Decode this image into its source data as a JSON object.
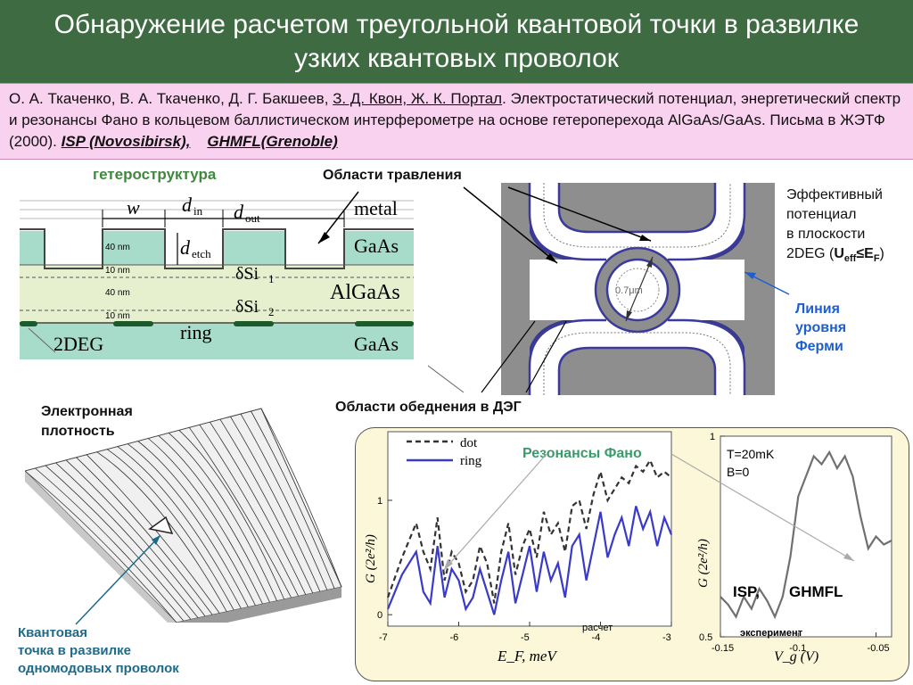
{
  "title": "Обнаружение расчетом треугольной квантовой точки в развилке узких квантовых проволок",
  "reference": {
    "authors_plain": "О. А. Ткаченко, В. А. Ткаченко, Д. Г. Бакшеев, ",
    "authors_underlined": "З. Д. Квон, Ж. К. Портал",
    "text": ". Электростатический потенциал, энергетический спектр и резонансы Фано в кольцевом баллистическом интерферометре на основе гетероперехода AlGaAs/GaAs. Письма в ЖЭТФ (2000). ",
    "org1": "ISP (Novosibirsk),",
    "org2": "GHMFL(Grenoble)"
  },
  "heterostructure": {
    "title": "гетероструктура",
    "w": "w",
    "d_in": "d",
    "d_in_sub": "in",
    "d_out": "d",
    "d_out_sub": "out",
    "d_etch": "d",
    "d_etch_sub": "etch",
    "metal": "metal",
    "gaas_top": "GaAs",
    "delta_si1": "δSi",
    "delta_si1_sub": "1",
    "algaas": "AlGaAs",
    "delta_si2": "δSi",
    "delta_si2_sub": "2",
    "ring": "ring",
    "twodeg": "2DEG",
    "gaas_bottom": "GaAs",
    "nm40a": "40 nm",
    "nm10a": "10 nm",
    "nm40b": "40 nm",
    "nm10b": "10 nm"
  },
  "labels": {
    "etching": "Области травления",
    "depletion": "Области обеднения  в ДЭГ",
    "effective_potential_1": "Эффективный",
    "effective_potential_2": "потенциал",
    "effective_potential_3": "в плоскости",
    "effective_potential_4a": "2DEG (",
    "effective_potential_4b": "U",
    "effective_potential_4c": "eff",
    "effective_potential_4d": "≤E",
    "effective_potential_4e": "F",
    "effective_potential_4f": ")",
    "fermi_1": "Линия",
    "fermi_2": "уровня",
    "fermi_3": "Ферми",
    "ring_size": "0.7μm",
    "density_1": "Электронная",
    "density_2": "плотность",
    "dot_1": "Квантовая",
    "dot_2": "точка в развилке",
    "dot_3": "одномодовых проволок"
  },
  "chart_data": [
    {
      "type": "line",
      "title": "Резонансы Фано",
      "xlabel": "E_F, meV",
      "ylabel": "G (2e²/h)",
      "xlim": [
        -7,
        -3
      ],
      "ylim": [
        -0.1,
        1.6
      ],
      "x_ticks": [
        "-7",
        "-6",
        "-5",
        "-4",
        "-3"
      ],
      "y_ticks": [
        "0",
        "1"
      ],
      "caption": "расчет",
      "series": [
        {
          "name": "dot",
          "color": "#333333",
          "style": "dashed",
          "x": [
            -7.0,
            -6.8,
            -6.6,
            -6.5,
            -6.4,
            -6.3,
            -6.2,
            -6.1,
            -6.0,
            -5.9,
            -5.8,
            -5.7,
            -5.6,
            -5.5,
            -5.4,
            -5.3,
            -5.2,
            -5.1,
            -5.0,
            -4.9,
            -4.8,
            -4.7,
            -4.6,
            -4.5,
            -4.4,
            -4.3,
            -4.2,
            -4.1,
            -4.0,
            -3.9,
            -3.8,
            -3.7,
            -3.6,
            -3.5,
            -3.4,
            -3.3,
            -3.2,
            -3.1,
            -3.0
          ],
          "y": [
            0.15,
            0.5,
            0.8,
            0.55,
            0.4,
            0.85,
            0.3,
            0.55,
            0.45,
            0.2,
            0.3,
            0.6,
            0.45,
            0.1,
            0.55,
            0.8,
            0.35,
            0.6,
            0.75,
            0.5,
            0.9,
            0.7,
            0.8,
            0.55,
            0.95,
            1.0,
            0.75,
            1.05,
            1.25,
            1.0,
            1.1,
            1.2,
            1.15,
            1.3,
            1.25,
            1.35,
            1.2,
            1.25,
            1.2
          ]
        },
        {
          "name": "ring",
          "color": "#3a3ac8",
          "style": "solid",
          "x": [
            -7.0,
            -6.8,
            -6.6,
            -6.5,
            -6.4,
            -6.3,
            -6.2,
            -6.1,
            -6.0,
            -5.9,
            -5.8,
            -5.7,
            -5.6,
            -5.5,
            -5.4,
            -5.3,
            -5.2,
            -5.1,
            -5.0,
            -4.9,
            -4.8,
            -4.7,
            -4.6,
            -4.5,
            -4.4,
            -4.3,
            -4.2,
            -4.1,
            -4.0,
            -3.9,
            -3.8,
            -3.7,
            -3.6,
            -3.5,
            -3.4,
            -3.3,
            -3.2,
            -3.1,
            -3.0
          ],
          "y": [
            0.05,
            0.35,
            0.55,
            0.2,
            0.1,
            0.6,
            0.15,
            0.4,
            0.3,
            0.05,
            0.15,
            0.4,
            0.2,
            0.0,
            0.3,
            0.55,
            0.1,
            0.35,
            0.6,
            0.2,
            0.55,
            0.3,
            0.45,
            0.15,
            0.6,
            0.7,
            0.3,
            0.6,
            0.9,
            0.5,
            0.7,
            0.85,
            0.6,
            0.95,
            0.75,
            0.9,
            0.6,
            0.85,
            0.7
          ]
        }
      ]
    },
    {
      "type": "line",
      "title": "",
      "xlabel": "V_g (V)",
      "ylabel": "G (2e²/h)",
      "xlim": [
        -0.15,
        -0.04
      ],
      "ylim": [
        0.5,
        1.0
      ],
      "x_ticks": [
        "-0.15",
        "-0.1",
        "-0.05"
      ],
      "y_ticks": [
        "0.5",
        "1"
      ],
      "annotation_1": "T=20mK",
      "annotation_2": "B=0",
      "caption": "эксперимент",
      "labs": "ISP,       GHMFL",
      "series": [
        {
          "name": "",
          "color": "#707070",
          "style": "solid",
          "x": [
            -0.15,
            -0.145,
            -0.14,
            -0.135,
            -0.13,
            -0.125,
            -0.12,
            -0.115,
            -0.11,
            -0.105,
            -0.1,
            -0.095,
            -0.09,
            -0.085,
            -0.08,
            -0.075,
            -0.07,
            -0.065,
            -0.06,
            -0.055,
            -0.05,
            -0.045,
            -0.04
          ],
          "y": [
            0.6,
            0.58,
            0.55,
            0.6,
            0.57,
            0.62,
            0.59,
            0.55,
            0.6,
            0.7,
            0.85,
            0.9,
            0.95,
            0.93,
            0.96,
            0.92,
            0.95,
            0.9,
            0.8,
            0.72,
            0.75,
            0.73,
            0.74
          ]
        }
      ]
    }
  ]
}
